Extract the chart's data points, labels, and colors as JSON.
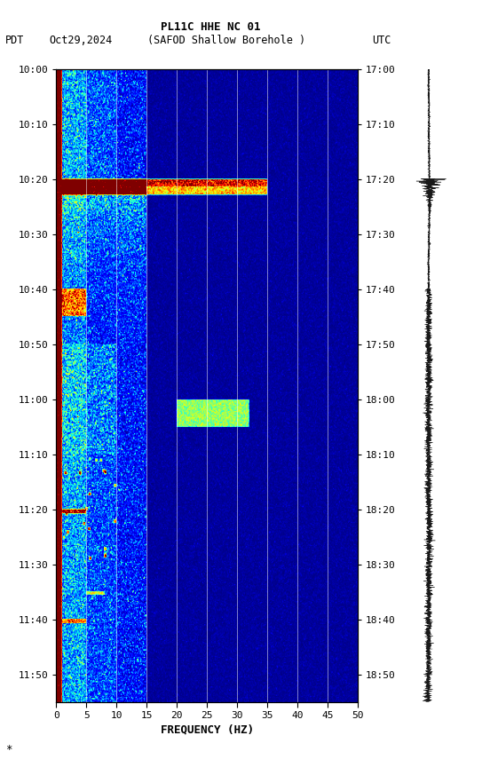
{
  "title_line1": "PL11C HHE NC 01",
  "title_line2_left": "PDT   Oct29,2024",
  "title_line2_mid": "(SAFOD Shallow Borehole )",
  "title_line2_right": "UTC",
  "xlabel": "FREQUENCY (HZ)",
  "left_times": [
    "10:00",
    "10:10",
    "10:20",
    "10:30",
    "10:40",
    "10:50",
    "11:00",
    "11:10",
    "11:20",
    "11:30",
    "11:40",
    "11:50"
  ],
  "right_times": [
    "17:00",
    "17:10",
    "17:20",
    "17:30",
    "17:40",
    "17:50",
    "18:00",
    "18:10",
    "18:20",
    "18:30",
    "18:40",
    "18:50"
  ],
  "freq_min": 0,
  "freq_max": 50,
  "freq_ticks": [
    0,
    5,
    10,
    15,
    20,
    25,
    30,
    35,
    40,
    45,
    50
  ],
  "bg_color": "white",
  "colormap": "jet",
  "n_time": 600,
  "n_freq": 500,
  "seed": 42
}
